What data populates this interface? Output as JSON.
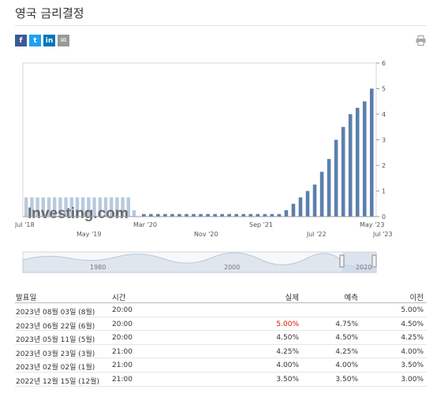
{
  "page": {
    "title": "영국 금리결정"
  },
  "share": {
    "icons": [
      {
        "name": "facebook-icon",
        "glyph": "f",
        "color": "#3b5998"
      },
      {
        "name": "twitter-icon",
        "glyph": "t",
        "color": "#1da1f2"
      },
      {
        "name": "linkedin-icon",
        "glyph": "in",
        "color": "#0077b5"
      },
      {
        "name": "email-icon",
        "glyph": "✉",
        "color": "#999999"
      }
    ],
    "print_icon": "printer-icon"
  },
  "chart_data": {
    "type": "bar",
    "watermark": "Investing.com",
    "x_tick_labels": [
      "Jul '18",
      "May '19",
      "Mar '20",
      "Nov '20",
      "Sep '21",
      "Jul '22",
      "May '23",
      "Jul '23"
    ],
    "y_ticks": [
      0,
      1,
      2,
      3,
      4,
      5,
      6
    ],
    "ylim": [
      0,
      6
    ],
    "y_axis_position": "right",
    "series": [
      {
        "kind": "historical-light",
        "color": "#b9c9dd",
        "values": [
          0.75,
          0.75,
          0.75,
          0.75,
          0.75,
          0.75,
          0.75,
          0.75,
          0.75,
          0.75,
          0.75,
          0.75,
          0.75,
          0.75,
          0.75,
          0.75,
          0.75,
          0.75,
          0.75,
          0.25
        ]
      },
      {
        "kind": "recent-dark",
        "color": "#5b7fae",
        "values": [
          0.1,
          0.1,
          0.1,
          0.1,
          0.1,
          0.1,
          0.1,
          0.1,
          0.1,
          0.1,
          0.1,
          0.1,
          0.1,
          0.1,
          0.1,
          0.1,
          0.1,
          0.1,
          0.1,
          0.1,
          0.25,
          0.5,
          0.75,
          1.0,
          1.25,
          1.75,
          2.25,
          3.0,
          3.5,
          4.0,
          4.25,
          4.5,
          5.0
        ]
      }
    ],
    "navigator": {
      "labels": [
        "1980",
        "2000",
        "2020"
      ]
    }
  },
  "table": {
    "headers": {
      "date": "발표일",
      "time": "시간",
      "actual": "실제",
      "forecast": "예측",
      "previous": "이전"
    },
    "rows": [
      {
        "date": "2023년 08월 03일 (8월)",
        "time": "20:00",
        "actual": "",
        "forecast": "",
        "previous": "5.00%",
        "actual_color": "#333333"
      },
      {
        "date": "2023년 06월 22일 (6월)",
        "time": "20:00",
        "actual": "5.00%",
        "forecast": "4.75%",
        "previous": "4.50%",
        "actual_color": "#d91400"
      },
      {
        "date": "2023년 05월 11일 (5월)",
        "time": "20:00",
        "actual": "4.50%",
        "forecast": "4.50%",
        "previous": "4.25%",
        "actual_color": "#333333"
      },
      {
        "date": "2023년 03월 23일 (3월)",
        "time": "21:00",
        "actual": "4.25%",
        "forecast": "4.25%",
        "previous": "4.00%",
        "actual_color": "#333333"
      },
      {
        "date": "2023년 02월 02일 (1월)",
        "time": "21:00",
        "actual": "4.00%",
        "forecast": "4.00%",
        "previous": "3.50%",
        "actual_color": "#333333"
      },
      {
        "date": "2022년 12월 15일 (12월)",
        "time": "21:00",
        "actual": "3.50%",
        "forecast": "3.50%",
        "previous": "3.00%",
        "actual_color": "#333333"
      }
    ]
  }
}
